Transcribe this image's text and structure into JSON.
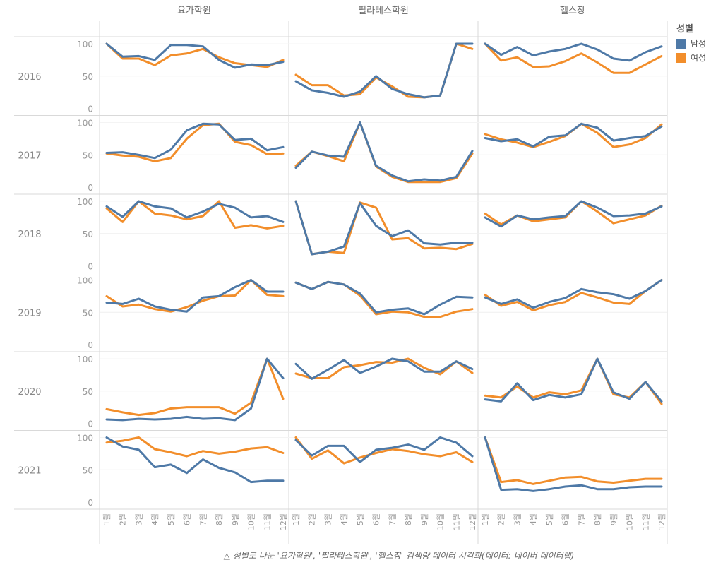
{
  "caption": "△ 성별로 나눈 '요가학원', '필라테스학원', '헬스장' 검색량 데이터 시각화(데이터: 네이버 데이터랩)",
  "legend": {
    "title": "성별",
    "items": [
      {
        "label": "남성",
        "color": "#4e79a7"
      },
      {
        "label": "여성",
        "color": "#f28e2b"
      }
    ]
  },
  "chart_data": {
    "type": "line",
    "title": "",
    "xlabel": "",
    "ylabel": "",
    "ylim": [
      0,
      100
    ],
    "yticks": [
      0,
      50,
      100
    ],
    "grid": true,
    "legend_position": "top-right",
    "columns": [
      "요가학원",
      "필라테스학원",
      "헬스장"
    ],
    "rows": [
      "2016",
      "2017",
      "2018",
      "2019",
      "2020",
      "2021"
    ],
    "x": [
      "1월",
      "2월",
      "3월",
      "4월",
      "5월",
      "6월",
      "7월",
      "8월",
      "9월",
      "10월",
      "11월",
      "12월"
    ],
    "series_names": [
      "남성",
      "여성"
    ],
    "series_colors": [
      "#4e79a7",
      "#f28e2b"
    ],
    "panels": {
      "2016": {
        "요가학원": {
          "남성": [
            100,
            80,
            81,
            75,
            98,
            98,
            96,
            75,
            63,
            68,
            67,
            72
          ],
          "여성": [
            100,
            77,
            77,
            67,
            82,
            85,
            92,
            79,
            70,
            67,
            64,
            75
          ]
        },
        "필라테스학원": {
          "남성": [
            42,
            28,
            24,
            18,
            26,
            50,
            30,
            22,
            17,
            20,
            100,
            100
          ],
          "여성": [
            52,
            36,
            36,
            20,
            22,
            48,
            34,
            18,
            17,
            20,
            100,
            92
          ]
        },
        "헬스장": {
          "남성": [
            100,
            83,
            95,
            82,
            88,
            92,
            100,
            91,
            77,
            74,
            87,
            96
          ],
          "여성": [
            100,
            74,
            79,
            64,
            65,
            73,
            85,
            71,
            55,
            55,
            68,
            81
          ]
        }
      },
      "2017": {
        "요가학원": {
          "남성": [
            53,
            54,
            50,
            45,
            58,
            88,
            98,
            97,
            73,
            75,
            57,
            62
          ],
          "여성": [
            52,
            49,
            47,
            40,
            45,
            75,
            96,
            98,
            70,
            65,
            51,
            52
          ]
        },
        "필라테스학원": {
          "남성": [
            30,
            55,
            49,
            47,
            100,
            33,
            18,
            9,
            12,
            10,
            16,
            56
          ],
          "여성": [
            33,
            55,
            48,
            40,
            100,
            32,
            16,
            8,
            8,
            8,
            14,
            52
          ]
        },
        "헬스장": {
          "남성": [
            76,
            71,
            74,
            63,
            78,
            80,
            98,
            92,
            72,
            76,
            79,
            94
          ],
          "여성": [
            82,
            74,
            69,
            62,
            70,
            79,
            98,
            84,
            62,
            66,
            76,
            97
          ]
        }
      },
      "2018": {
        "요가학원": {
          "남성": [
            92,
            76,
            100,
            92,
            89,
            75,
            84,
            96,
            90,
            75,
            77,
            68
          ],
          "여성": [
            89,
            68,
            100,
            81,
            78,
            72,
            77,
            100,
            59,
            63,
            58,
            62
          ]
        },
        "필라테스학원": {
          "남성": [
            100,
            18,
            22,
            30,
            97,
            62,
            46,
            55,
            35,
            33,
            36,
            36
          ],
          "여성": [
            100,
            18,
            22,
            20,
            98,
            90,
            41,
            43,
            27,
            28,
            26,
            34
          ]
        },
        "헬스장": {
          "남성": [
            75,
            61,
            78,
            72,
            75,
            77,
            100,
            90,
            77,
            78,
            81,
            92
          ],
          "여성": [
            81,
            64,
            78,
            69,
            72,
            75,
            100,
            84,
            66,
            72,
            78,
            93
          ]
        }
      },
      "2019": {
        "요가학원": {
          "남성": [
            65,
            63,
            71,
            59,
            54,
            51,
            73,
            75,
            89,
            100,
            82,
            82
          ],
          "여성": [
            75,
            59,
            62,
            55,
            51,
            58,
            68,
            75,
            76,
            100,
            77,
            75
          ]
        },
        "필라테스학원": {
          "남성": [
            96,
            86,
            97,
            93,
            79,
            50,
            54,
            56,
            47,
            62,
            74,
            73
          ],
          "여성": [
            96,
            86,
            97,
            93,
            76,
            47,
            51,
            50,
            43,
            43,
            51,
            55
          ]
        },
        "헬스장": {
          "남성": [
            73,
            63,
            70,
            57,
            66,
            72,
            86,
            81,
            78,
            71,
            83,
            100
          ],
          "여성": [
            77,
            60,
            66,
            53,
            61,
            66,
            80,
            73,
            65,
            63,
            83,
            100
          ]
        }
      },
      "2020": {
        "요가학원": {
          "남성": [
            6,
            5,
            7,
            6,
            7,
            10,
            7,
            8,
            5,
            23,
            100,
            70
          ],
          "여성": [
            22,
            17,
            13,
            16,
            23,
            25,
            25,
            25,
            15,
            32,
            100,
            38
          ]
        },
        "필라테스학원": {
          "남성": [
            92,
            69,
            83,
            98,
            78,
            88,
            100,
            96,
            80,
            80,
            96,
            84
          ],
          "여성": [
            77,
            70,
            70,
            87,
            90,
            95,
            94,
            100,
            86,
            76,
            96,
            78
          ]
        },
        "헬스장": {
          "남성": [
            37,
            34,
            62,
            36,
            44,
            40,
            45,
            100,
            48,
            38,
            64,
            34
          ],
          "여성": [
            43,
            40,
            57,
            40,
            48,
            45,
            51,
            100,
            45,
            40,
            64,
            30
          ]
        }
      },
      "2021": {
        "요가학원": {
          "남성": [
            100,
            86,
            81,
            54,
            58,
            45,
            66,
            53,
            46,
            31,
            33,
            33
          ],
          "여성": [
            92,
            95,
            100,
            82,
            77,
            71,
            79,
            75,
            78,
            83,
            85,
            76
          ]
        },
        "필라테스학원": {
          "남성": [
            96,
            72,
            87,
            87,
            62,
            81,
            84,
            89,
            81,
            100,
            92,
            71
          ],
          "여성": [
            100,
            67,
            80,
            60,
            69,
            76,
            82,
            79,
            74,
            71,
            77,
            62
          ]
        },
        "헬스장": {
          "남성": [
            100,
            19,
            20,
            17,
            20,
            24,
            26,
            20,
            20,
            23,
            24,
            24
          ],
          "여성": [
            100,
            31,
            34,
            28,
            33,
            38,
            39,
            32,
            30,
            33,
            36,
            36
          ]
        }
      }
    }
  }
}
